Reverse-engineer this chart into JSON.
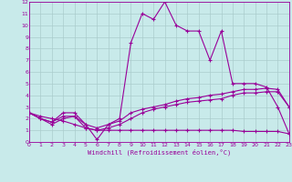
{
  "xlabel": "Windchill (Refroidissement éolien,°C)",
  "xlim": [
    0,
    23
  ],
  "ylim": [
    0,
    12
  ],
  "xticks": [
    0,
    1,
    2,
    3,
    4,
    5,
    6,
    7,
    8,
    9,
    10,
    11,
    12,
    13,
    14,
    15,
    16,
    17,
    18,
    19,
    20,
    21,
    22,
    23
  ],
  "yticks": [
    0,
    1,
    2,
    3,
    4,
    5,
    6,
    7,
    8,
    9,
    10,
    11,
    12
  ],
  "bg_color": "#c8eaea",
  "line_color": "#990099",
  "grid_color": "#aacccc",
  "line1_x": [
    0,
    1,
    2,
    3,
    4,
    5,
    6,
    7,
    8,
    9,
    10,
    11,
    12,
    13,
    14,
    15,
    16,
    17,
    18,
    19,
    20,
    21,
    22,
    23
  ],
  "line1_y": [
    2.5,
    2.0,
    1.7,
    2.5,
    2.5,
    1.5,
    0.2,
    1.5,
    2.0,
    8.5,
    11.0,
    10.5,
    12.0,
    10.0,
    9.5,
    9.5,
    7.0,
    9.5,
    5.0,
    5.0,
    5.0,
    4.7,
    3.0,
    0.7
  ],
  "line2_x": [
    0,
    1,
    2,
    3,
    4,
    5,
    6,
    7,
    8,
    9,
    10,
    11,
    12,
    13,
    14,
    15,
    16,
    17,
    18,
    19,
    20,
    21,
    22,
    23
  ],
  "line2_y": [
    2.5,
    2.0,
    1.7,
    2.2,
    2.2,
    1.5,
    1.2,
    1.5,
    1.8,
    2.5,
    2.8,
    3.0,
    3.2,
    3.5,
    3.7,
    3.8,
    4.0,
    4.1,
    4.3,
    4.5,
    4.5,
    4.6,
    4.5,
    3.0
  ],
  "line3_x": [
    0,
    1,
    2,
    3,
    4,
    5,
    6,
    7,
    8,
    9,
    10,
    11,
    12,
    13,
    14,
    15,
    16,
    17,
    18,
    19,
    20,
    21,
    22,
    23
  ],
  "line3_y": [
    2.5,
    2.0,
    1.5,
    2.0,
    2.2,
    1.2,
    1.0,
    1.2,
    1.5,
    2.0,
    2.5,
    2.8,
    3.0,
    3.2,
    3.4,
    3.5,
    3.6,
    3.7,
    4.0,
    4.2,
    4.2,
    4.3,
    4.3,
    3.0
  ],
  "line4_x": [
    0,
    1,
    2,
    3,
    4,
    5,
    6,
    7,
    8,
    9,
    10,
    11,
    12,
    13,
    14,
    15,
    16,
    17,
    18,
    19,
    20,
    21,
    22,
    23
  ],
  "line4_y": [
    2.5,
    2.2,
    2.0,
    1.8,
    1.5,
    1.2,
    1.0,
    1.0,
    1.0,
    1.0,
    1.0,
    1.0,
    1.0,
    1.0,
    1.0,
    1.0,
    1.0,
    1.0,
    1.0,
    0.9,
    0.9,
    0.9,
    0.9,
    0.7
  ]
}
